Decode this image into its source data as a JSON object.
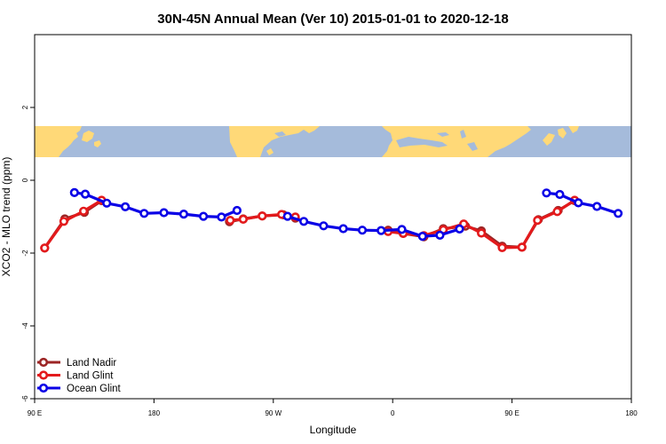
{
  "chart_data": {
    "type": "line",
    "title": "30N-45N Annual Mean (Ver 10)   2015-01-01 to 2020-12-18",
    "xlabel": "Longitude",
    "ylabel": "XCO2 - MLO trend (ppm)",
    "xlim": [
      90,
      540
    ],
    "ylim": [
      -6,
      4
    ],
    "x_ticks": [
      {
        "value": 90,
        "label": "90 E"
      },
      {
        "value": 180,
        "label": "180"
      },
      {
        "value": 270,
        "label": "90 W"
      },
      {
        "value": 360,
        "label": "0"
      },
      {
        "value": 450,
        "label": "90 E"
      },
      {
        "value": 540,
        "label": "180"
      }
    ],
    "y_ticks": [
      {
        "value": -6,
        "label": "-6"
      },
      {
        "value": -4,
        "label": "-4"
      },
      {
        "value": -2,
        "label": "-2"
      },
      {
        "value": 0,
        "label": "0"
      },
      {
        "value": 2,
        "label": "2"
      }
    ],
    "legend_position": "bottom-left",
    "map_strip": {
      "y_range": [
        0.6,
        1.4
      ],
      "land_color": "#ffd978",
      "ocean_color": "#a5bbdb"
    },
    "series": [
      {
        "name": "Land Nadir",
        "color": "#9c2525",
        "segments": [
          [
            [
              97.6,
              -1.86
            ],
            [
              112.8,
              -1.06
            ],
            [
              127.5,
              -0.88
            ],
            [
              140.5,
              -0.56
            ]
          ],
          [
            [
              236.9,
              -1.14
            ],
            [
              247.3,
              -1.06
            ],
            [
              261.6,
              -0.98
            ],
            [
              277.5,
              -0.95
            ],
            [
              286.6,
              -1.04
            ]
          ],
          [
            [
              356.6,
              -1.37
            ],
            [
              368.0,
              -1.46
            ],
            [
              383.6,
              -1.55
            ],
            [
              398.2,
              -1.33
            ],
            [
              414.9,
              -1.26
            ],
            [
              426.9,
              -1.39
            ],
            [
              442.6,
              -1.81
            ],
            [
              457.5,
              -1.84
            ],
            [
              469.9,
              -1.08
            ],
            [
              484.8,
              -0.83
            ],
            [
              497.2,
              -0.56
            ]
          ]
        ]
      },
      {
        "name": "Land Glint",
        "color": "#e31a1c",
        "segments": [
          [
            [
              97.6,
              -1.86
            ],
            [
              112.0,
              -1.13
            ],
            [
              126.9,
              -0.85
            ],
            [
              140.5,
              -0.55
            ]
          ],
          [
            [
              237.5,
              -1.1
            ],
            [
              247.3,
              -1.07
            ],
            [
              261.6,
              -0.98
            ],
            [
              276.2,
              -0.94
            ],
            [
              286.6,
              -1.01
            ]
          ],
          [
            [
              356.6,
              -1.41
            ],
            [
              368.0,
              -1.46
            ],
            [
              383.6,
              -1.52
            ],
            [
              398.2,
              -1.36
            ],
            [
              413.6,
              -1.2
            ],
            [
              426.9,
              -1.45
            ],
            [
              442.6,
              -1.85
            ],
            [
              457.5,
              -1.84
            ],
            [
              469.2,
              -1.1
            ],
            [
              484.1,
              -0.86
            ],
            [
              497.2,
              -0.55
            ]
          ]
        ]
      },
      {
        "name": "Ocean Glint",
        "color": "#0a00e6",
        "segments": [
          [
            [
              120.0,
              -0.34
            ],
            [
              128.2,
              -0.38
            ],
            [
              144.4,
              -0.63
            ],
            [
              158.4,
              -0.73
            ],
            [
              172.6,
              -0.91
            ],
            [
              187.5,
              -0.89
            ],
            [
              202.4,
              -0.93
            ],
            [
              217.3,
              -0.99
            ],
            [
              230.9,
              -1.01
            ],
            [
              242.6,
              -0.83
            ]
          ],
          [
            [
              280.7,
              -0.99
            ],
            [
              293.0,
              -1.13
            ],
            [
              307.9,
              -1.25
            ],
            [
              322.8,
              -1.33
            ],
            [
              337.1,
              -1.37
            ],
            [
              351.3,
              -1.38
            ],
            [
              366.9,
              -1.35
            ],
            [
              382.5,
              -1.54
            ],
            [
              395.6,
              -1.51
            ],
            [
              410.4,
              -1.34
            ]
          ],
          [
            [
              476.0,
              -0.35
            ],
            [
              486.0,
              -0.39
            ],
            [
              500.0,
              -0.62
            ],
            [
              514.0,
              -0.72
            ],
            [
              530.0,
              -0.91
            ]
          ]
        ]
      }
    ]
  }
}
